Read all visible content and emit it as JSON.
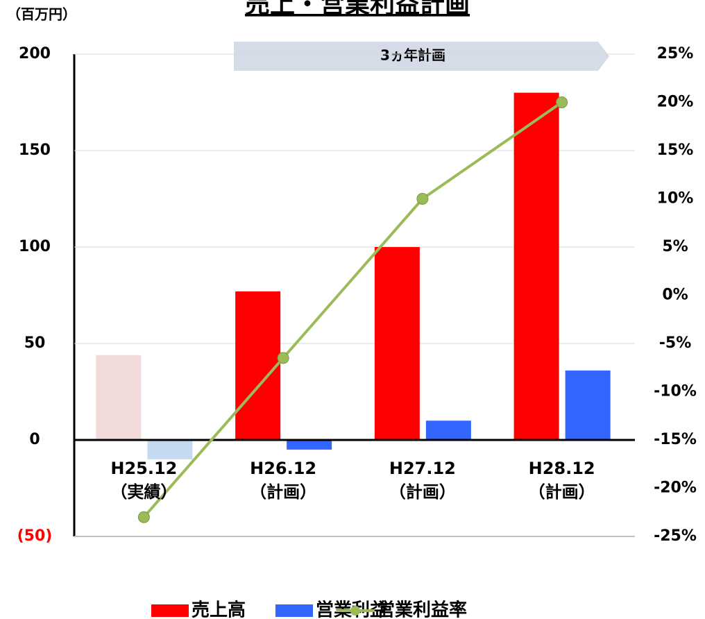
{
  "chart_data": {
    "type": "bar",
    "title": "売上・営業利益計画",
    "unit_label": "（百万円）",
    "annotation": "3ヵ年計画",
    "categories": [
      "H25.12\n（実績）",
      "H26.12\n（計画）",
      "H27.12\n（計画）",
      "H28.12\n（計画）"
    ],
    "series": [
      {
        "name": "売上高",
        "color": "#ff0000",
        "colors": [
          "#f2dcdb",
          "#ff0000",
          "#ff0000",
          "#ff0000"
        ],
        "values": [
          44,
          77,
          100,
          180
        ]
      },
      {
        "name": "営業利益",
        "color": "#3366ff",
        "colors": [
          "#c5d9f1",
          "#3366ff",
          "#3366ff",
          "#3366ff"
        ],
        "values": [
          -10,
          -5,
          10,
          36
        ]
      },
      {
        "name": "営業利益率",
        "type": "line",
        "axis": "y2",
        "color": "#9bbb59",
        "values": [
          -23,
          -6.5,
          10,
          20
        ]
      }
    ],
    "ylim": [
      -50,
      200
    ],
    "yticks": [
      {
        "value": -50,
        "label": "(50)"
      },
      0,
      50,
      100,
      150,
      200
    ],
    "y2lim": [
      -25,
      25
    ],
    "y2ticks": [
      {
        "value": -25,
        "label": "-25%"
      },
      {
        "value": -20,
        "label": "-20%"
      },
      {
        "value": -15,
        "label": "-15%"
      },
      {
        "value": -10,
        "label": "-10%"
      },
      {
        "value": -5,
        "label": "-5%"
      },
      {
        "value": 0,
        "label": "0%"
      },
      {
        "value": 5,
        "label": "5%"
      },
      {
        "value": 10,
        "label": "10%"
      },
      {
        "value": 15,
        "label": "15%"
      },
      {
        "value": 20,
        "label": "20%"
      },
      {
        "value": 25,
        "label": "25%"
      }
    ],
    "grid": true
  }
}
